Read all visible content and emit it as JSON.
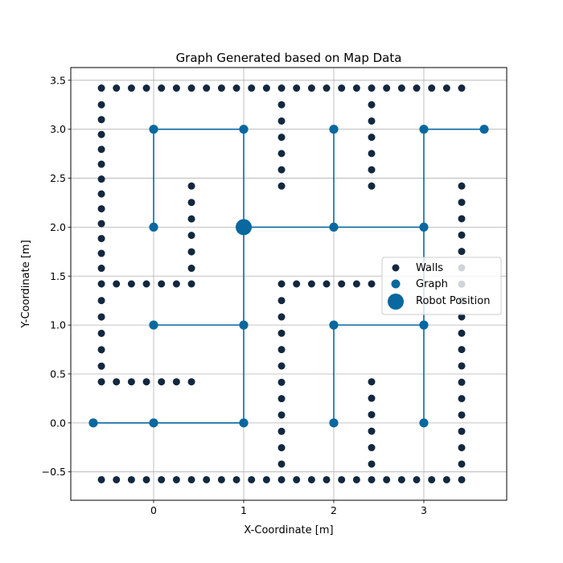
{
  "chart_data": {
    "type": "scatter",
    "title": "Graph Generated based on Map Data",
    "xlabel": "X-Coordinate [m]",
    "ylabel": "Y-Coordinate [m]",
    "xlim": [
      -0.92,
      3.92
    ],
    "ylim": [
      -0.79,
      3.63
    ],
    "x_ticks": [
      0,
      1,
      2,
      3
    ],
    "y_ticks": [
      -0.5,
      0.0,
      0.5,
      1.0,
      1.5,
      2.0,
      2.5,
      3.0,
      3.5
    ],
    "x_tick_labels": [
      "0",
      "1",
      "2",
      "3"
    ],
    "y_tick_labels": [
      "−0.5",
      "0.0",
      "0.5",
      "1.0",
      "1.5",
      "2.0",
      "2.5",
      "3.0",
      "3.5"
    ],
    "grid": true,
    "legend_position": "center-right",
    "colors": {
      "walls": "#13283f",
      "graph": "#08689f",
      "robot": "#08689f"
    },
    "series": [
      {
        "name": "Walls",
        "kind": "points",
        "segments": [
          {
            "x": [
              -0.58,
              3.42
            ],
            "y": [
              3.42,
              3.42
            ],
            "n": 25
          },
          {
            "x": [
              -0.58,
              3.42
            ],
            "y": [
              -0.58,
              -0.58
            ],
            "n": 25
          },
          {
            "x": [
              -0.58,
              -0.58
            ],
            "y": [
              3.25,
              1.58
            ],
            "n": 12
          },
          {
            "x": [
              -0.58,
              -0.58
            ],
            "y": [
              1.25,
              0.58
            ],
            "n": 5
          },
          {
            "x": [
              -0.58,
              0.42
            ],
            "y": [
              1.42,
              1.42
            ],
            "n": 7
          },
          {
            "x": [
              0.42,
              0.42
            ],
            "y": [
              2.42,
              1.58
            ],
            "n": 6
          },
          {
            "x": [
              -0.58,
              0.42
            ],
            "y": [
              0.42,
              0.42
            ],
            "n": 7
          },
          {
            "x": [
              1.42,
              1.42
            ],
            "y": [
              3.25,
              2.42
            ],
            "n": 6
          },
          {
            "x": [
              2.42,
              2.42
            ],
            "y": [
              3.25,
              2.42
            ],
            "n": 6
          },
          {
            "x": [
              1.42,
              2.42
            ],
            "y": [
              1.42,
              1.42
            ],
            "n": 7
          },
          {
            "x": [
              1.42,
              1.42
            ],
            "y": [
              1.25,
              -0.42
            ],
            "n": 11
          },
          {
            "x": [
              2.42,
              2.42
            ],
            "y": [
              0.42,
              -0.42
            ],
            "n": 6
          },
          {
            "x": [
              3.42,
              3.42
            ],
            "y": [
              2.42,
              -0.42
            ],
            "n": 18
          }
        ]
      },
      {
        "name": "Graph",
        "kind": "network",
        "nodes": [
          [
            0,
            3
          ],
          [
            1,
            3
          ],
          [
            2,
            3
          ],
          [
            3,
            3
          ],
          [
            3.67,
            3
          ],
          [
            0,
            2
          ],
          [
            1,
            2
          ],
          [
            2,
            2
          ],
          [
            3,
            2
          ],
          [
            0,
            1
          ],
          [
            1,
            1
          ],
          [
            2,
            1
          ],
          [
            3,
            1
          ],
          [
            -0.67,
            0
          ],
          [
            0,
            0
          ],
          [
            1,
            0
          ],
          [
            2,
            0
          ],
          [
            3,
            0
          ]
        ],
        "edges": [
          [
            0,
            1
          ],
          [
            0,
            5
          ],
          [
            1,
            6
          ],
          [
            2,
            7
          ],
          [
            3,
            4
          ],
          [
            3,
            8
          ],
          [
            6,
            7
          ],
          [
            7,
            8
          ],
          [
            6,
            10
          ],
          [
            9,
            10
          ],
          [
            10,
            15
          ],
          [
            11,
            12
          ],
          [
            11,
            16
          ],
          [
            8,
            12
          ],
          [
            12,
            17
          ],
          [
            13,
            14
          ],
          [
            14,
            15
          ]
        ]
      },
      {
        "name": "Robot Position",
        "kind": "point",
        "x": 1,
        "y": 2
      }
    ]
  }
}
